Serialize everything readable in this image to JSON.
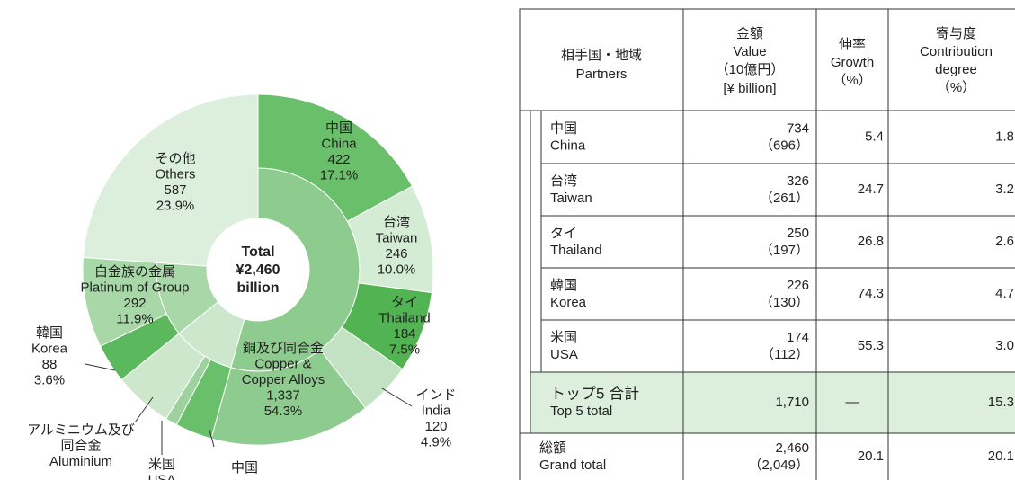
{
  "chart_data": {
    "type": "donut",
    "center_label": [
      "Total",
      "¥2,460",
      "billion"
    ],
    "inner": [
      {
        "lines": [
          "銅及び同合金",
          "Copper &",
          "Copper Alloys"
        ],
        "value": {
          "value": 1337,
          "label": "1,337"
        },
        "share": {
          "value": 54.3,
          "label": "54.3%"
        },
        "color": "#8ecb8e"
      },
      {
        "lines": [
          "アルミニウム及び",
          "同合金",
          "Aluminium"
        ],
        "share": 9.9,
        "color": "#cce7cc"
      },
      {
        "lines": [
          "白金族の金属",
          "Platinum of Group"
        ],
        "value": 292,
        "share": {
          "value": 11.9,
          "label": "11.9%"
        },
        "color": "#a8d8a8"
      },
      {
        "lines": [
          "その他",
          "Others"
        ],
        "value": 587,
        "share": {
          "value": 23.9,
          "label": "23.9%"
        },
        "color": "#dcefdc"
      }
    ],
    "outer": [
      {
        "lines": [
          "中国",
          "China"
        ],
        "value": 422,
        "share": {
          "value": 17.1,
          "label": "17.1%"
        },
        "color": "#6abf6a"
      },
      {
        "lines": [
          "台湾",
          "Taiwan"
        ],
        "value": 246,
        "share": {
          "value": 10.0,
          "label": "10.0%"
        },
        "color": "#d4ecd4"
      },
      {
        "lines": [
          "タイ",
          "Thailand"
        ],
        "value": 184,
        "share": {
          "value": 7.5,
          "label": "7.5%"
        },
        "color": "#52b352"
      },
      {
        "lines": [
          "インド",
          "India"
        ],
        "value": 120,
        "share": {
          "value": 4.9,
          "label": "4.9%"
        },
        "color": "#c3e2c3"
      },
      {
        "share": 14.8,
        "color": "#8ecb8e"
      },
      {
        "lines": [
          "中国"
        ],
        "share": 3.4,
        "color": "#6abf6a"
      },
      {
        "lines": [
          "米国",
          "USA"
        ],
        "share": 1.1,
        "color": "#9dd19d"
      },
      {
        "share": 5.4,
        "color": "#cce7cc"
      },
      {
        "lines": [
          "韓国",
          "Korea"
        ],
        "value": 88,
        "share": {
          "value": 3.6,
          "label": "3.6%"
        },
        "color": "#5cb85c"
      },
      {
        "share": 8.3,
        "color": "#a8d8a8"
      }
    ]
  },
  "table": {
    "header": [
      [
        "相手国・地域",
        "Partners"
      ],
      [
        "金額",
        "Value",
        "（10億円）",
        "[¥ billion]"
      ],
      [
        "伸率",
        "Growth",
        "（%）"
      ],
      [
        "寄与度",
        "Contribution",
        "degree",
        "（%）"
      ]
    ],
    "rows": [
      {
        "partner": [
          "中国",
          "China"
        ],
        "value": [
          "734",
          "（696）"
        ],
        "growth": "5.4",
        "contribution": "1.8"
      },
      {
        "partner": [
          "台湾",
          "Taiwan"
        ],
        "value": [
          "326",
          "（261）"
        ],
        "growth": "24.7",
        "contribution": "3.2"
      },
      {
        "partner": [
          "タイ",
          "Thailand"
        ],
        "value": [
          "250",
          "（197）"
        ],
        "growth": "26.8",
        "contribution": "2.6"
      },
      {
        "partner": [
          "韓国",
          "Korea"
        ],
        "value": [
          "226",
          "（130）"
        ],
        "growth": "74.3",
        "contribution": "4.7"
      },
      {
        "partner": [
          "米国",
          "USA"
        ],
        "value": [
          "174",
          "（112）"
        ],
        "growth": "55.3",
        "contribution": "3.0"
      },
      {
        "partner": [
          "トップ5 合計",
          "Top 5 total"
        ],
        "value": [
          "1,710"
        ],
        "growth": "—",
        "contribution": "15.3"
      },
      {
        "partner": [
          "総額",
          "Grand total"
        ],
        "value": [
          "2,460",
          "（2,049）"
        ],
        "growth": "20.1",
        "contribution": "20.1"
      }
    ]
  }
}
